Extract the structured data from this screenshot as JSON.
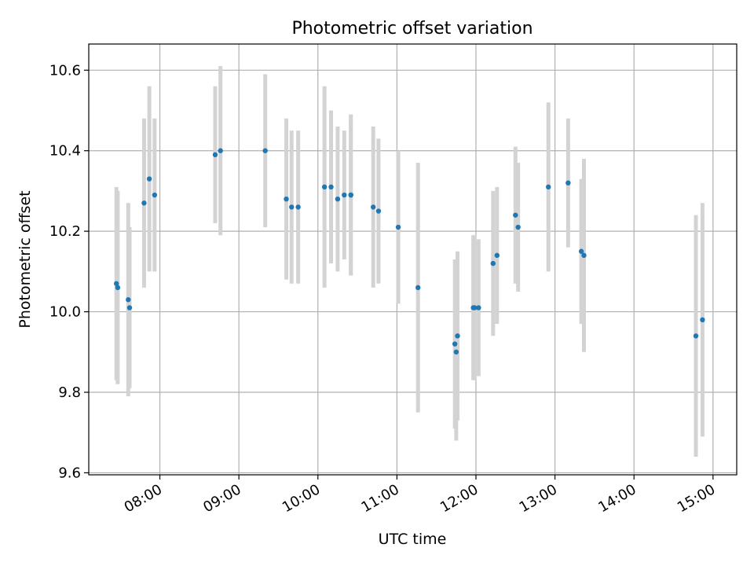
{
  "chart_data": {
    "type": "scatter",
    "title": "Photometric offset variation",
    "xlabel": "UTC time",
    "ylabel": "Photometric offset",
    "x_is_time": true,
    "xlim": [
      "07:06",
      "15:18"
    ],
    "ylim": [
      9.595,
      10.665
    ],
    "x_ticks": [
      "08:00",
      "09:00",
      "10:00",
      "11:00",
      "12:00",
      "13:00",
      "14:00",
      "15:00"
    ],
    "y_ticks": [
      9.6,
      9.8,
      10.0,
      10.2,
      10.4,
      10.6
    ],
    "y_tick_labels": [
      "9.6",
      "9.8",
      "10.0",
      "10.2",
      "10.4",
      "10.6"
    ],
    "grid": true,
    "marker_color": "#1f77b4",
    "errorbar_color": "#d3d3d3",
    "points": [
      {
        "t": "07:27",
        "y": 10.07,
        "err": 0.24
      },
      {
        "t": "07:28",
        "y": 10.06,
        "err": 0.24
      },
      {
        "t": "07:36",
        "y": 10.03,
        "err": 0.24
      },
      {
        "t": "07:37",
        "y": 10.01,
        "err": 0.2
      },
      {
        "t": "07:48",
        "y": 10.27,
        "err": 0.21
      },
      {
        "t": "07:52",
        "y": 10.33,
        "err": 0.23
      },
      {
        "t": "07:56",
        "y": 10.29,
        "err": 0.19
      },
      {
        "t": "08:42",
        "y": 10.39,
        "err": 0.17
      },
      {
        "t": "08:46",
        "y": 10.4,
        "err": 0.21
      },
      {
        "t": "09:20",
        "y": 10.4,
        "err": 0.19
      },
      {
        "t": "09:36",
        "y": 10.28,
        "err": 0.2
      },
      {
        "t": "09:40",
        "y": 10.26,
        "err": 0.19
      },
      {
        "t": "09:45",
        "y": 10.26,
        "err": 0.19
      },
      {
        "t": "10:05",
        "y": 10.31,
        "err": 0.25
      },
      {
        "t": "10:10",
        "y": 10.31,
        "err": 0.19
      },
      {
        "t": "10:15",
        "y": 10.28,
        "err": 0.18
      },
      {
        "t": "10:20",
        "y": 10.29,
        "err": 0.16
      },
      {
        "t": "10:25",
        "y": 10.29,
        "err": 0.2
      },
      {
        "t": "10:25",
        "y": 10.29,
        "err": 0.2
      },
      {
        "t": "10:42",
        "y": 10.26,
        "err": 0.2
      },
      {
        "t": "10:46",
        "y": 10.25,
        "err": 0.18
      },
      {
        "t": "11:01",
        "y": 10.21,
        "err": 0.19
      },
      {
        "t": "11:16",
        "y": 10.06,
        "err": 0.31
      },
      {
        "t": "11:44",
        "y": 9.92,
        "err": 0.21
      },
      {
        "t": "11:45",
        "y": 9.9,
        "err": 0.22
      },
      {
        "t": "11:46",
        "y": 9.94,
        "err": 0.21
      },
      {
        "t": "11:58",
        "y": 10.01,
        "err": 0.18
      },
      {
        "t": "11:59",
        "y": 10.01,
        "err": 0.18
      },
      {
        "t": "12:02",
        "y": 10.01,
        "err": 0.17
      },
      {
        "t": "12:13",
        "y": 10.12,
        "err": 0.18
      },
      {
        "t": "12:16",
        "y": 10.14,
        "err": 0.17
      },
      {
        "t": "12:30",
        "y": 10.24,
        "err": 0.17
      },
      {
        "t": "12:32",
        "y": 10.21,
        "err": 0.16
      },
      {
        "t": "12:55",
        "y": 10.31,
        "err": 0.21
      },
      {
        "t": "13:10",
        "y": 10.32,
        "err": 0.16
      },
      {
        "t": "13:20",
        "y": 10.15,
        "err": 0.18
      },
      {
        "t": "13:22",
        "y": 10.14,
        "err": 0.24
      },
      {
        "t": "14:47",
        "y": 9.94,
        "err": 0.3
      },
      {
        "t": "14:52",
        "y": 9.98,
        "err": 0.29
      }
    ]
  }
}
